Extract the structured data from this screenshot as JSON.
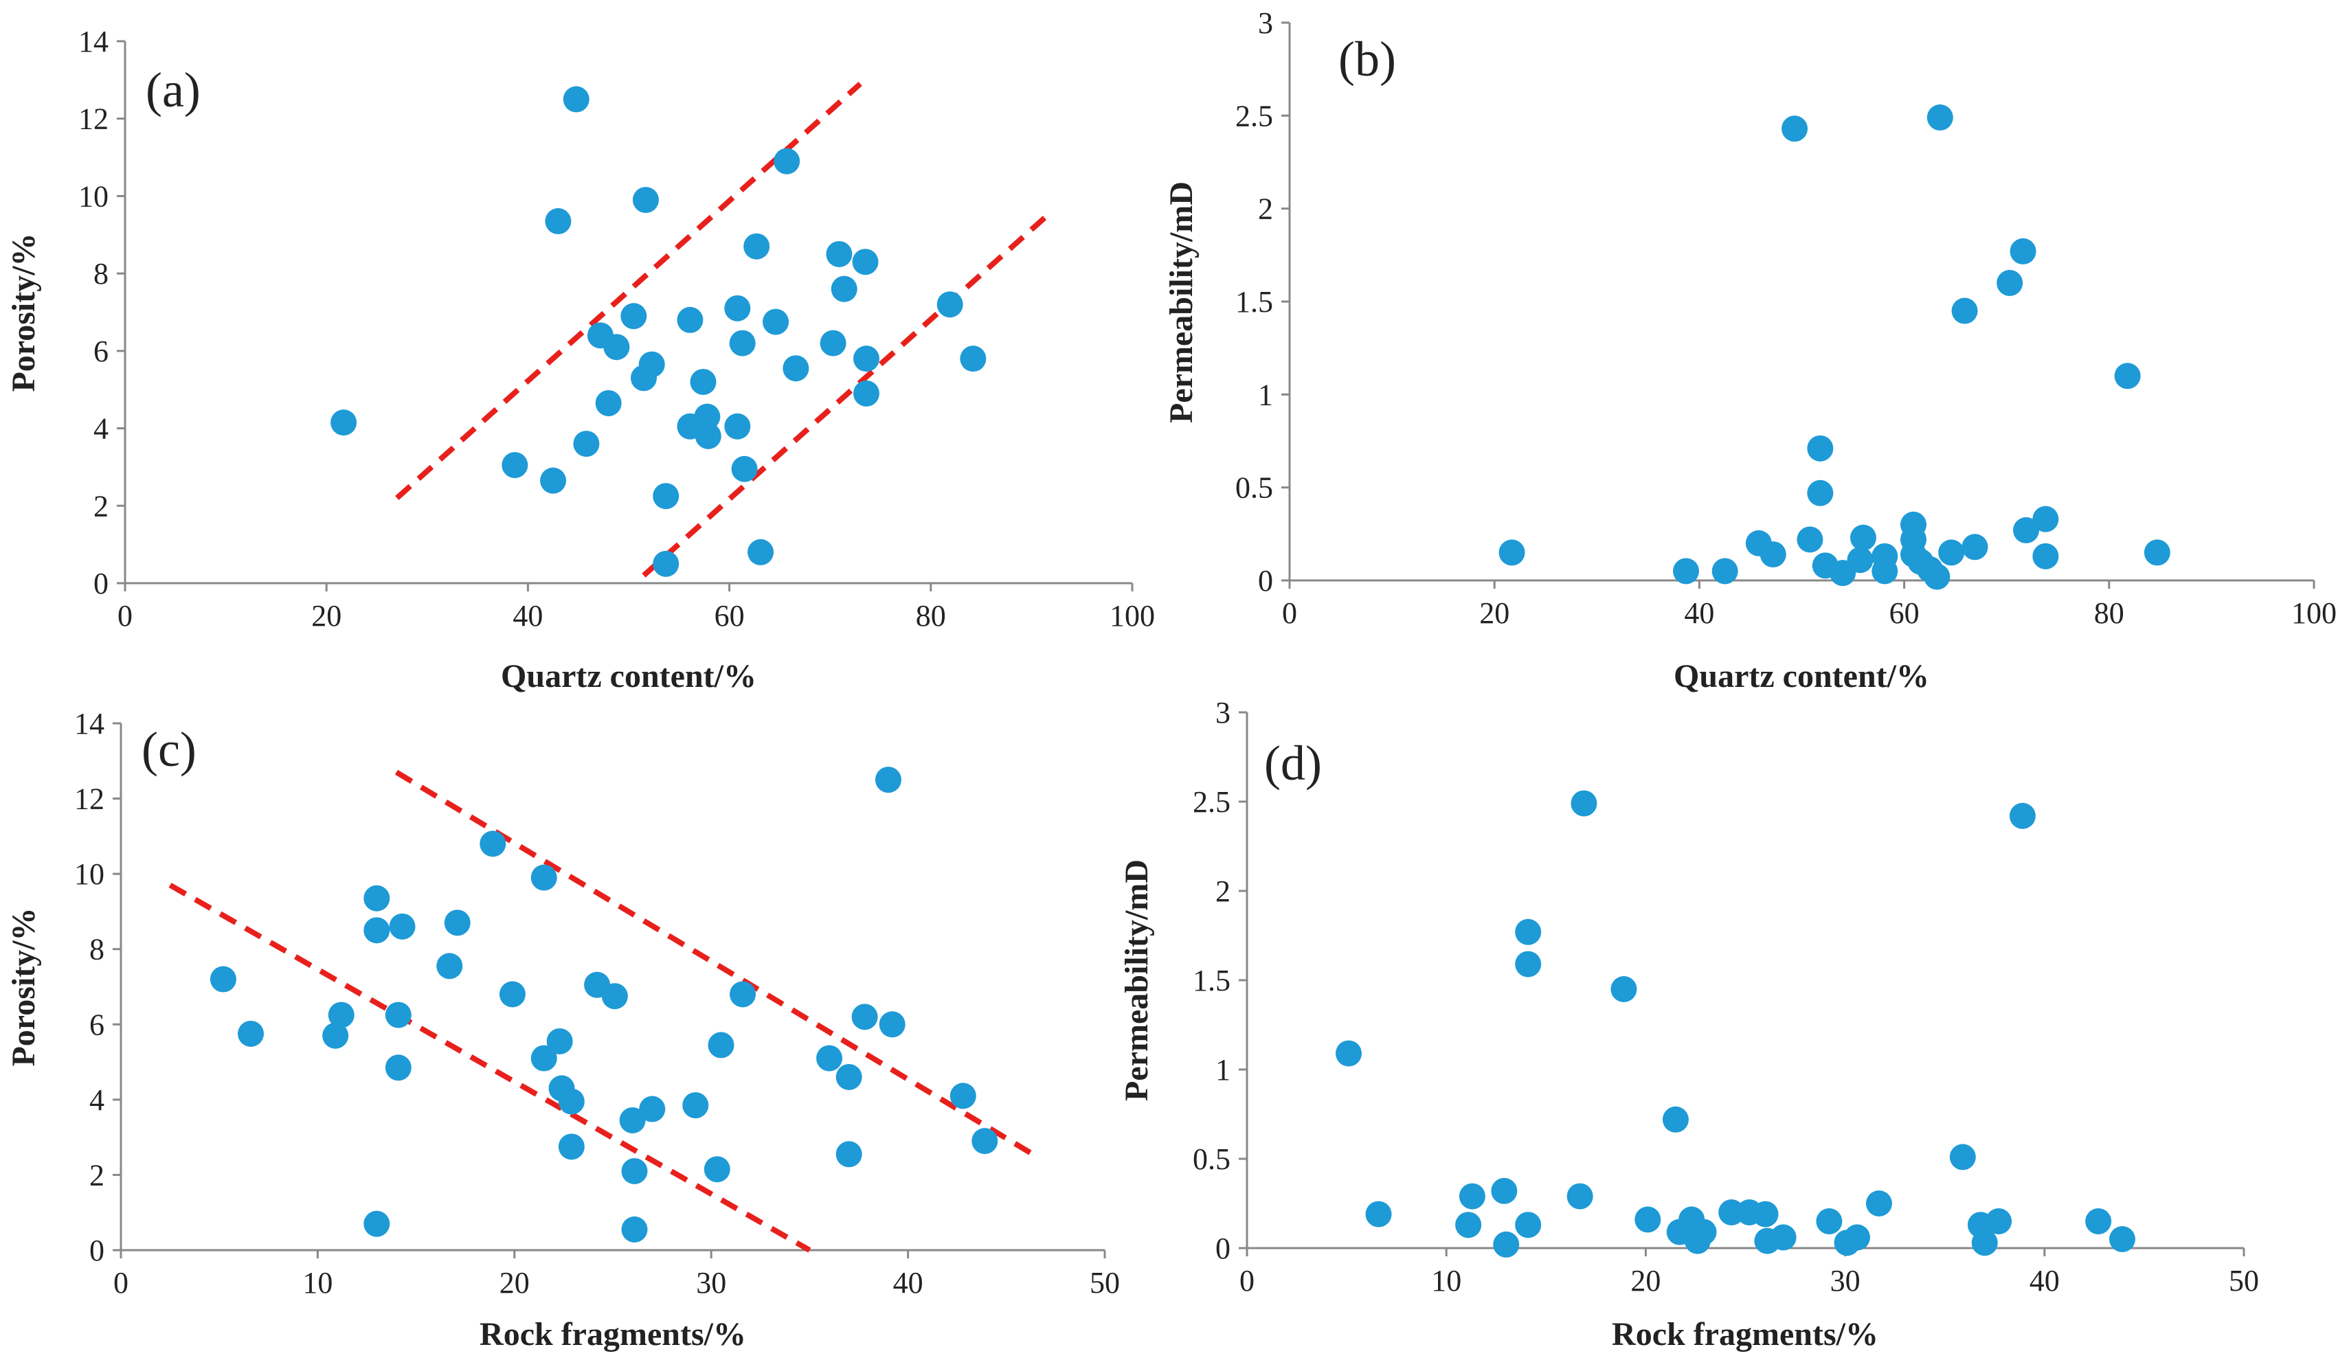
{
  "style": {
    "point_color": "#1E9AD6",
    "trend_color": "#E8201C",
    "axis_color": "#888888"
  },
  "chart_data": [
    {
      "type": "scatter",
      "panel_label": "(a)",
      "xlabel": "Quartz content/%",
      "ylabel": "Porosity/%",
      "xlim": [
        0,
        100
      ],
      "ylim": [
        0,
        14
      ],
      "xticks": [
        0,
        20,
        40,
        60,
        80,
        100
      ],
      "yticks": [
        0,
        2,
        4,
        6,
        8,
        10,
        12,
        14
      ],
      "grid": false,
      "points": [
        [
          21.7,
          4.15
        ],
        [
          38.7,
          3.05
        ],
        [
          42.5,
          2.65
        ],
        [
          43.0,
          9.35
        ],
        [
          44.8,
          12.5
        ],
        [
          45.8,
          3.6
        ],
        [
          47.2,
          6.4
        ],
        [
          48.0,
          4.65
        ],
        [
          48.8,
          6.1
        ],
        [
          50.5,
          6.9
        ],
        [
          51.5,
          5.3
        ],
        [
          51.7,
          9.9
        ],
        [
          52.3,
          5.65
        ],
        [
          53.7,
          2.25
        ],
        [
          53.7,
          0.5
        ],
        [
          56.1,
          6.8
        ],
        [
          56.1,
          4.05
        ],
        [
          57.4,
          5.2
        ],
        [
          57.5,
          4.0
        ],
        [
          57.8,
          4.3
        ],
        [
          57.9,
          3.8
        ],
        [
          60.8,
          7.1
        ],
        [
          60.8,
          4.05
        ],
        [
          61.3,
          6.2
        ],
        [
          61.5,
          2.95
        ],
        [
          62.7,
          8.7
        ],
        [
          63.1,
          0.8
        ],
        [
          64.6,
          6.75
        ],
        [
          65.7,
          10.9
        ],
        [
          66.6,
          5.55
        ],
        [
          70.3,
          6.2
        ],
        [
          70.9,
          8.5
        ],
        [
          71.4,
          7.6
        ],
        [
          73.5,
          8.3
        ],
        [
          73.6,
          5.8
        ],
        [
          73.6,
          4.9
        ],
        [
          81.9,
          7.2
        ],
        [
          84.2,
          5.8
        ]
      ],
      "trend_lines": [
        [
          [
            27,
            2.2
          ],
          [
            73,
            12.9
          ]
        ],
        [
          [
            51.5,
            0.2
          ],
          [
            92,
            9.6
          ]
        ]
      ]
    },
    {
      "type": "scatter",
      "panel_label": "(b)",
      "xlabel": "Quartz content/%",
      "ylabel": "Permeability/mD",
      "xlim": [
        0,
        100
      ],
      "ylim": [
        0,
        3
      ],
      "xticks": [
        0,
        20,
        40,
        60,
        80,
        100
      ],
      "yticks": [
        0,
        0.5,
        1,
        1.5,
        2,
        2.5,
        3
      ],
      "ytick_labels": [
        "0",
        "0.5",
        "1",
        "1.5",
        "2",
        "2.5",
        "3"
      ],
      "grid": false,
      "points": [
        [
          21.7,
          0.15
        ],
        [
          38.7,
          0.05
        ],
        [
          42.5,
          0.05
        ],
        [
          45.8,
          0.2
        ],
        [
          47.2,
          0.14
        ],
        [
          49.3,
          2.43
        ],
        [
          50.8,
          0.22
        ],
        [
          51.8,
          0.71
        ],
        [
          51.8,
          0.47
        ],
        [
          52.3,
          0.08
        ],
        [
          54.0,
          0.04
        ],
        [
          55.7,
          0.11
        ],
        [
          56.0,
          0.23
        ],
        [
          58.1,
          0.13
        ],
        [
          58.1,
          0.05
        ],
        [
          60.9,
          0.3
        ],
        [
          60.9,
          0.22
        ],
        [
          60.9,
          0.14
        ],
        [
          61.6,
          0.1
        ],
        [
          62.5,
          0.06
        ],
        [
          63.2,
          0.02
        ],
        [
          63.5,
          2.49
        ],
        [
          64.6,
          0.15
        ],
        [
          65.9,
          1.45
        ],
        [
          66.9,
          0.18
        ],
        [
          70.3,
          1.6
        ],
        [
          71.6,
          1.77
        ],
        [
          71.9,
          0.27
        ],
        [
          73.8,
          0.33
        ],
        [
          73.8,
          0.13
        ],
        [
          81.8,
          1.1
        ],
        [
          84.7,
          0.15
        ]
      ]
    },
    {
      "type": "scatter",
      "panel_label": "(c)",
      "xlabel": "Rock fragments/%",
      "ylabel": "Porosity/%",
      "xlim": [
        0,
        50
      ],
      "ylim": [
        0,
        14
      ],
      "xticks": [
        0,
        10,
        20,
        30,
        40,
        50
      ],
      "yticks": [
        0,
        2,
        4,
        6,
        8,
        10,
        12,
        14
      ],
      "grid": false,
      "points": [
        [
          5.2,
          7.2
        ],
        [
          6.6,
          5.75
        ],
        [
          10.9,
          5.7
        ],
        [
          11.2,
          6.25
        ],
        [
          13.0,
          9.35
        ],
        [
          13.0,
          8.5
        ],
        [
          13.0,
          0.7
        ],
        [
          14.1,
          6.25
        ],
        [
          14.1,
          4.85
        ],
        [
          14.3,
          8.6
        ],
        [
          16.7,
          7.55
        ],
        [
          17.1,
          8.7
        ],
        [
          18.9,
          10.8
        ],
        [
          19.9,
          6.8
        ],
        [
          21.5,
          9.9
        ],
        [
          21.5,
          5.1
        ],
        [
          22.3,
          5.55
        ],
        [
          22.4,
          4.3
        ],
        [
          22.9,
          2.75
        ],
        [
          22.9,
          3.95
        ],
        [
          24.2,
          7.05
        ],
        [
          25.1,
          6.75
        ],
        [
          26.0,
          3.45
        ],
        [
          26.1,
          2.1
        ],
        [
          26.1,
          0.55
        ],
        [
          27.0,
          3.75
        ],
        [
          29.2,
          3.85
        ],
        [
          30.3,
          2.15
        ],
        [
          30.5,
          5.45
        ],
        [
          31.6,
          6.8
        ],
        [
          36.0,
          5.1
        ],
        [
          37.0,
          4.6
        ],
        [
          37.0,
          2.55
        ],
        [
          37.8,
          6.2
        ],
        [
          39.0,
          12.5
        ],
        [
          39.2,
          6.0
        ],
        [
          42.8,
          4.1
        ],
        [
          43.9,
          2.9
        ]
      ],
      "trend_lines": [
        [
          [
            2.5,
            9.7
          ],
          [
            35,
            0
          ]
        ],
        [
          [
            14,
            12.7
          ],
          [
            46.5,
            2.5
          ]
        ]
      ]
    },
    {
      "type": "scatter",
      "panel_label": "(d)",
      "xlabel": "Rock fragments/%",
      "ylabel": "Permeability/mD",
      "xlim": [
        0,
        50
      ],
      "ylim": [
        0,
        3
      ],
      "xticks": [
        0,
        10,
        20,
        30,
        40,
        50
      ],
      "yticks": [
        0,
        0.5,
        1,
        1.5,
        2,
        2.5,
        3
      ],
      "ytick_labels": [
        "0",
        "0.5",
        "1",
        "1.5",
        "2",
        "2.5",
        "3"
      ],
      "grid": false,
      "points": [
        [
          5.1,
          1.09
        ],
        [
          6.6,
          0.19
        ],
        [
          11.1,
          0.13
        ],
        [
          11.3,
          0.29
        ],
        [
          12.9,
          0.32
        ],
        [
          13.0,
          0.02
        ],
        [
          14.1,
          1.77
        ],
        [
          14.1,
          1.59
        ],
        [
          14.1,
          0.13
        ],
        [
          16.7,
          0.29
        ],
        [
          16.9,
          2.49
        ],
        [
          18.9,
          1.45
        ],
        [
          20.1,
          0.16
        ],
        [
          21.5,
          0.72
        ],
        [
          21.7,
          0.09
        ],
        [
          22.3,
          0.16
        ],
        [
          22.4,
          0.1
        ],
        [
          22.6,
          0.04
        ],
        [
          22.9,
          0.09
        ],
        [
          24.3,
          0.2
        ],
        [
          25.2,
          0.2
        ],
        [
          26.0,
          0.19
        ],
        [
          26.1,
          0.04
        ],
        [
          26.9,
          0.06
        ],
        [
          29.2,
          0.15
        ],
        [
          30.1,
          0.03
        ],
        [
          30.6,
          0.06
        ],
        [
          31.7,
          0.25
        ],
        [
          35.9,
          0.51
        ],
        [
          36.8,
          0.13
        ],
        [
          37.0,
          0.03
        ],
        [
          37.7,
          0.15
        ],
        [
          38.9,
          2.42
        ],
        [
          42.7,
          0.15
        ],
        [
          43.9,
          0.05
        ]
      ]
    }
  ]
}
